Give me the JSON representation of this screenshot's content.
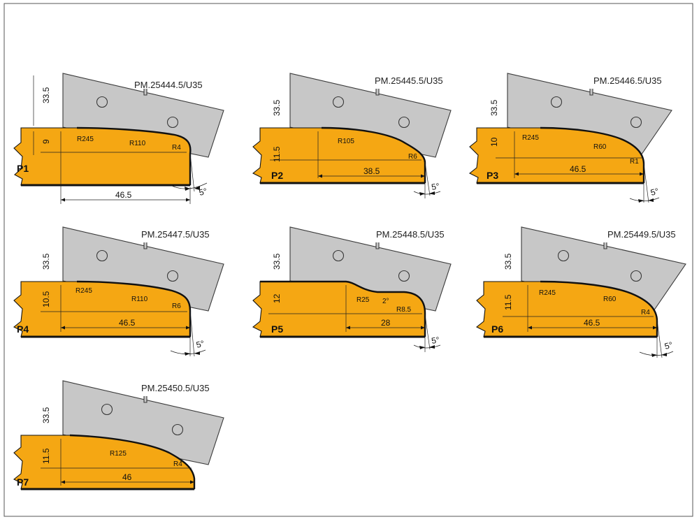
{
  "frame_color": "#555555",
  "profile_color": "#f5a713",
  "knife_color": "#c7c7c7",
  "profiles": [
    {
      "label": "P1",
      "code": "PM.25444.5/U35",
      "height": "9",
      "knife": "33.5",
      "radii": [
        "R245",
        "R110",
        "R4"
      ],
      "width": "46.5",
      "angle": "5°"
    },
    {
      "label": "P2",
      "code": "PM.25445.5/U35",
      "height": "11.5",
      "knife": "33.5",
      "radii": [
        "R105",
        "R6"
      ],
      "width": "38.5",
      "angle": "5°"
    },
    {
      "label": "P3",
      "code": "PM.25446.5/U35",
      "height": "10",
      "knife": "33.5",
      "radii": [
        "R245",
        "R60",
        "R1"
      ],
      "width": "46.5",
      "angle": "5°"
    },
    {
      "label": "P4",
      "code": "PM.25447.5/U35",
      "height": "10.5",
      "knife": "33.5",
      "radii": [
        "R245",
        "R110",
        "R6"
      ],
      "width": "46.5",
      "angle": "5°"
    },
    {
      "label": "P5",
      "code": "PM.25448.5/U35",
      "height": "12",
      "knife": "33.5",
      "radii": [
        "R25",
        "2°",
        "R8.5"
      ],
      "width": "28",
      "angle": "5°"
    },
    {
      "label": "P6",
      "code": "PM.25449.5/U35",
      "height": "11.5",
      "knife": "33.5",
      "radii": [
        "R245",
        "R60",
        "R4"
      ],
      "width": "46.5",
      "angle": "5°"
    },
    {
      "label": "P7",
      "code": "PM.25450.5/U35",
      "height": "11.5",
      "knife": "33.5",
      "radii": [
        "R125",
        "R4"
      ],
      "width": "46"
    }
  ]
}
